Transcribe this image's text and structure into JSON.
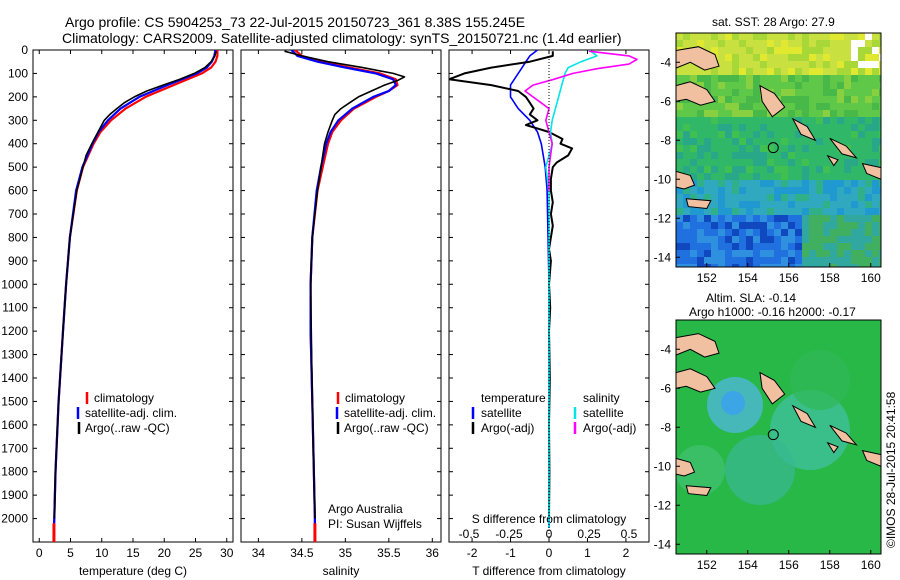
{
  "header": {
    "line1": "Argo profile: CS 5904253_73 22-Jul-2015 20150723_361 8.38S 155.245E",
    "line2": "Climatology: CARS2009. Satellite-adjusted climatology: synTS_20150721.nc (1.4d earlier)"
  },
  "colors": {
    "climatology": "#ff0000",
    "satellite": "#0000ff",
    "argo": "#000000",
    "sal_satellite": "#00e5e5",
    "sal_argo": "#ff00ff",
    "land": "#f0c0a0"
  },
  "maps": {
    "sst_title": "sat. SST: 28 Argo: 27.9",
    "sla_title_1": "Altim. SLA: -0.14",
    "sla_title_2": "Argo h1000: -0.16 h2000: -0.17",
    "lat_ticks": [
      "-4",
      "-6",
      "-8",
      "-10",
      "-12",
      "-14"
    ],
    "lon_ticks": [
      "152",
      "154",
      "156",
      "158",
      "160"
    ]
  },
  "credit": {
    "line1": "Argo Australia",
    "line2": "PI: Susan Wijffels",
    "stamp": "©IMOS 28-Jul-2015 20:41:58"
  },
  "chart_data": [
    {
      "type": "line",
      "xlabel": "temperature (deg C)",
      "ylim": [
        2100,
        0
      ],
      "xlim": [
        -1,
        31
      ],
      "x_ticks": [
        "0",
        "5",
        "10",
        "15",
        "20",
        "25",
        "30"
      ],
      "y_ticks": [
        "0",
        "100",
        "200",
        "300",
        "400",
        "500",
        "600",
        "700",
        "800",
        "900",
        "1000",
        "1100",
        "1200",
        "1300",
        "1400",
        "1500",
        "1600",
        "1700",
        "1800",
        "1900",
        "2000"
      ],
      "legend": [
        "climatology",
        "satellite-adj. clim.",
        "Argo(..raw -QC)"
      ],
      "series": [
        {
          "name": "climatology",
          "depth": [
            0,
            25,
            50,
            75,
            100,
            150,
            200,
            250,
            300,
            350,
            400,
            500,
            600,
            800,
            1000,
            1200,
            1500,
            1800,
            2000,
            2040
          ],
          "values": [
            28.5,
            28.5,
            28.2,
            27.5,
            26,
            21.5,
            17,
            13.8,
            11.5,
            9.8,
            8.7,
            7,
            6,
            4.9,
            4.3,
            3.8,
            3.1,
            2.6,
            2.4,
            2.35
          ]
        },
        {
          "name": "satellite-adj. clim.",
          "depth": [
            0,
            25,
            50,
            75,
            100,
            150,
            200,
            250,
            300,
            350,
            400,
            500,
            600,
            800,
            1000,
            1200,
            1500,
            1800,
            2000,
            2040
          ],
          "values": [
            28.2,
            28,
            27.6,
            26.8,
            25.2,
            20.5,
            16,
            13,
            11,
            9.5,
            8.5,
            6.9,
            5.9,
            4.9,
            4.3,
            3.8,
            3.1,
            2.6,
            2.4,
            2.35
          ]
        },
        {
          "name": "Argo(..raw -QC)",
          "depth": [
            5,
            25,
            50,
            75,
            100,
            125,
            150,
            175,
            200,
            225,
            250,
            275,
            300,
            350,
            400,
            450,
            500,
            600,
            800,
            1000,
            1200,
            1500,
            1800,
            2000
          ],
          "values": [
            28.3,
            28.1,
            27.5,
            26.5,
            24.8,
            22.5,
            19.8,
            17.2,
            15.2,
            13.6,
            12.4,
            11.3,
            10.4,
            9.4,
            8.4,
            7.5,
            7,
            6,
            4.9,
            4.3,
            3.8,
            3.1,
            2.6,
            2.4
          ]
        }
      ]
    },
    {
      "type": "line",
      "xlabel": "salinity",
      "ylim": [
        2100,
        0
      ],
      "xlim": [
        33.8,
        36.1
      ],
      "x_ticks": [
        "34",
        "34.5",
        "35",
        "35.5",
        "36"
      ],
      "legend": [
        "climatology",
        "satellite-adj. clim.",
        "Argo(..raw -QC)"
      ],
      "series": [
        {
          "name": "climatology",
          "depth": [
            0,
            25,
            50,
            75,
            100,
            125,
            150,
            175,
            200,
            250,
            300,
            350,
            400,
            500,
            600,
            800,
            1000,
            1200,
            1500,
            2000,
            2040
          ],
          "values": [
            34.42,
            34.5,
            34.72,
            35.05,
            35.4,
            35.58,
            35.6,
            35.5,
            35.35,
            35.1,
            34.95,
            34.85,
            34.8,
            34.74,
            34.68,
            34.62,
            34.6,
            34.6,
            34.62,
            34.65,
            34.65
          ]
        },
        {
          "name": "satellite-adj. clim.",
          "depth": [
            0,
            25,
            50,
            75,
            100,
            125,
            150,
            175,
            200,
            250,
            300,
            350,
            400,
            500,
            600,
            800,
            1000,
            1200,
            1500,
            2000,
            2040
          ],
          "values": [
            34.38,
            34.45,
            34.68,
            35,
            35.35,
            35.55,
            35.58,
            35.5,
            35.32,
            35.08,
            34.92,
            34.83,
            34.78,
            34.72,
            34.67,
            34.62,
            34.6,
            34.6,
            34.62,
            34.65,
            34.65
          ]
        },
        {
          "name": "Argo(..raw -QC)",
          "depth": [
            5,
            25,
            50,
            75,
            100,
            115,
            130,
            150,
            175,
            200,
            225,
            250,
            275,
            300,
            350,
            400,
            500,
            600,
            800,
            1000,
            1500,
            2000
          ],
          "values": [
            34.3,
            34.5,
            34.8,
            35.2,
            35.55,
            35.68,
            35.6,
            35.45,
            35.3,
            35.15,
            35.05,
            34.95,
            34.88,
            34.85,
            34.8,
            34.76,
            34.72,
            34.68,
            34.62,
            34.6,
            34.62,
            34.65
          ]
        }
      ]
    },
    {
      "type": "line",
      "xlabel": "T difference from climatology",
      "x2label": "S difference from climatology",
      "ylim": [
        2100,
        0
      ],
      "xlim": [
        -2.6,
        2.6
      ],
      "x_ticks": [
        "-2",
        "-1",
        "0",
        "1",
        "2"
      ],
      "x2_ticks": [
        "-0.5",
        "-0.25",
        "0",
        "0.25",
        "0.5"
      ],
      "legend": [
        "temperature",
        "satellite",
        "Argo(-adj)",
        "salinity",
        "satellite",
        "Argo(-adj)"
      ],
      "series": [
        {
          "name": "temperature satellite",
          "depth": [
            0,
            25,
            50,
            75,
            100,
            150,
            200,
            250,
            300,
            350,
            400,
            500,
            600,
            1000,
            2040
          ],
          "values": [
            -0.3,
            -0.5,
            -0.6,
            -0.7,
            -0.8,
            -1,
            -1,
            -0.8,
            -0.5,
            -0.3,
            -0.2,
            -0.1,
            -0.05,
            0,
            0
          ]
        },
        {
          "name": "temperature Argo(-adj)",
          "depth": [
            5,
            25,
            50,
            75,
            100,
            125,
            150,
            175,
            200,
            225,
            250,
            275,
            300,
            320,
            350,
            380,
            400,
            420,
            450,
            480,
            500,
            550,
            600,
            650,
            700,
            750,
            800,
            850,
            900,
            1000,
            1100,
            1200,
            1400,
            1600,
            1800,
            2000
          ],
          "values": [
            0.1,
            0.1,
            -0.5,
            -1.5,
            -2.2,
            -2.6,
            -1.5,
            -0.8,
            -0.6,
            -0.5,
            -0.4,
            -0.5,
            -0.3,
            -0.6,
            0,
            0.35,
            0.3,
            0.6,
            0.5,
            0.2,
            0.1,
            0.05,
            0.05,
            0.1,
            0.05,
            0.1,
            0.05,
            0,
            0.05,
            0,
            0.03,
            0,
            0.02,
            0,
            0.01,
            0
          ]
        },
        {
          "name": "salinity satellite",
          "depth": [
            0,
            25,
            50,
            75,
            100,
            150,
            200,
            250,
            300,
            350,
            400,
            450,
            500,
            600,
            800,
            1000,
            2040
          ],
          "values": [
            0.25,
            0.3,
            0.2,
            0.12,
            0.1,
            0.08,
            0.06,
            0.04,
            0.02,
            0.01,
            0.02,
            0.0,
            -0.02,
            0,
            0,
            0,
            0
          ]
        },
        {
          "name": "salinity Argo(-adj)",
          "depth": [
            5,
            25,
            40,
            60,
            80,
            100,
            125,
            150,
            175,
            200,
            225,
            250,
            300,
            350,
            400,
            500,
            600
          ],
          "values": [
            0.25,
            0.5,
            0.55,
            0.5,
            0.3,
            0.15,
            0.03,
            -0.1,
            -0.15,
            -0.1,
            -0.05,
            0,
            -0.02,
            0,
            0.02,
            0,
            0
          ]
        }
      ]
    },
    {
      "type": "heatmap",
      "title": "sat. SST: 28 Argo: 27.9",
      "xlim": [
        150.5,
        160.5
      ],
      "ylim": [
        -14.5,
        -2.5
      ],
      "argo_position": {
        "lon": 155.245,
        "lat": -8.38
      }
    },
    {
      "type": "heatmap",
      "title": "Altim. SLA: -0.14 / Argo h1000: -0.16 h2000: -0.17",
      "xlim": [
        150.5,
        160.5
      ],
      "ylim": [
        -14.5,
        -2.5
      ],
      "argo_position": {
        "lon": 155.245,
        "lat": -8.38
      }
    }
  ]
}
